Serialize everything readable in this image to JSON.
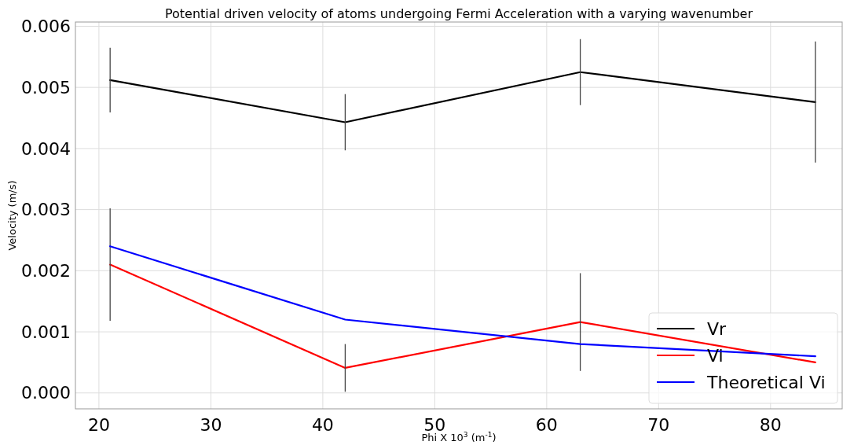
{
  "chart_data": {
    "type": "line",
    "title": "Potential driven velocity of atoms undergoing Fermi Acceleration with a varying wavenumber",
    "xlabel": "Phi X 10$^{3}$ (m$^{-1}$)",
    "ylabel": "Velocity (m/s)",
    "x": [
      21,
      42,
      63,
      84
    ],
    "series": [
      {
        "name": "Vr",
        "color": "#000000",
        "values": [
          0.00512,
          0.00443,
          0.00525,
          0.00476
        ],
        "errors": [
          0.00053,
          0.00046,
          0.00054,
          0.00099
        ]
      },
      {
        "name": "Vi",
        "color": "#ff0000",
        "values": [
          0.0021,
          0.00041,
          0.00116,
          0.0005
        ],
        "errors": [
          0.00092,
          0.00039,
          0.0008,
          null
        ]
      },
      {
        "name": "Theoretical Vi",
        "color": "#0000ff",
        "values": [
          0.0024,
          0.0012,
          0.0008,
          0.0006
        ]
      }
    ],
    "xlim": [
      17.9,
      86.4
    ],
    "xticks": [
      20,
      30,
      40,
      50,
      60,
      70,
      80
    ],
    "ylim": [
      -0.00026,
      0.00607
    ],
    "yticks": [
      {
        "value": 0,
        "label": "0.000"
      },
      {
        "value": 0.001,
        "label": "0.001"
      },
      {
        "value": 0.002,
        "label": "0.002"
      },
      {
        "value": 0.003,
        "label": "0.003"
      },
      {
        "value": 0.004,
        "label": "0.004"
      },
      {
        "value": 0.005,
        "label": "0.005"
      },
      {
        "value": 0.006,
        "label": "0.006"
      }
    ],
    "grid": true,
    "legend": "bottom right",
    "marker": "none",
    "line_style": "solid"
  }
}
